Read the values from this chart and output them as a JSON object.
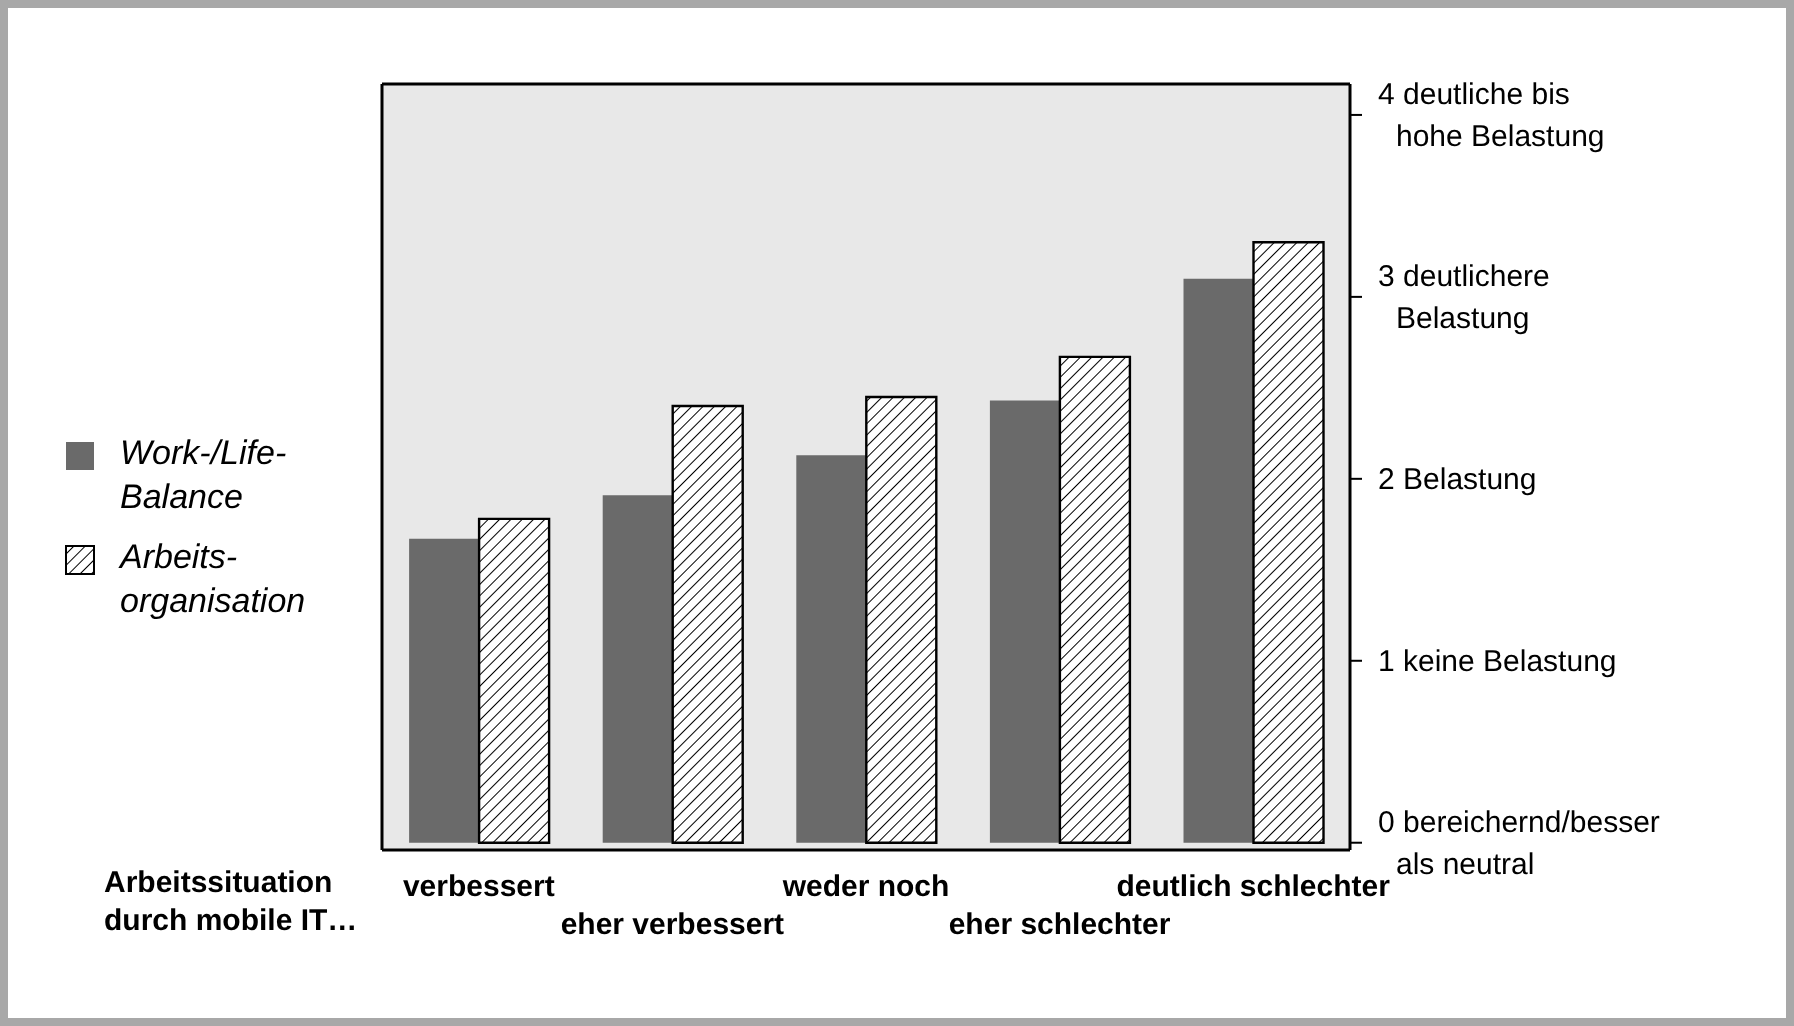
{
  "chart_data": {
    "type": "bar",
    "xlabel": "Arbeitssituation\ndurch mobile IT…",
    "categories": [
      "verbessert",
      "eher verbessert",
      "weder noch",
      "eher schlechter",
      "deutlich schlechter"
    ],
    "series": [
      {
        "name": "Work-/Life-\nBalance",
        "color": "#6a6a6a",
        "values": [
          1.67,
          1.91,
          2.13,
          2.43,
          3.1
        ]
      },
      {
        "name": "Arbeits-\norganisation",
        "color": "#000000",
        "values": [
          1.78,
          2.4,
          2.45,
          2.67,
          3.3
        ]
      }
    ],
    "ylim": [
      -0.04,
      4.17
    ],
    "yticks": [
      {
        "value": 0,
        "label": "0 bereichernd/besser\nals neutral"
      },
      {
        "value": 1,
        "label": "1 keine Belastung"
      },
      {
        "value": 2,
        "label": "2 Belastung"
      },
      {
        "value": 3,
        "label": "3 deutlichere\nBelastung"
      },
      {
        "value": 4,
        "label": "4 deutliche bis\nhohe Belastung"
      }
    ],
    "grid": false,
    "legend": "left"
  }
}
